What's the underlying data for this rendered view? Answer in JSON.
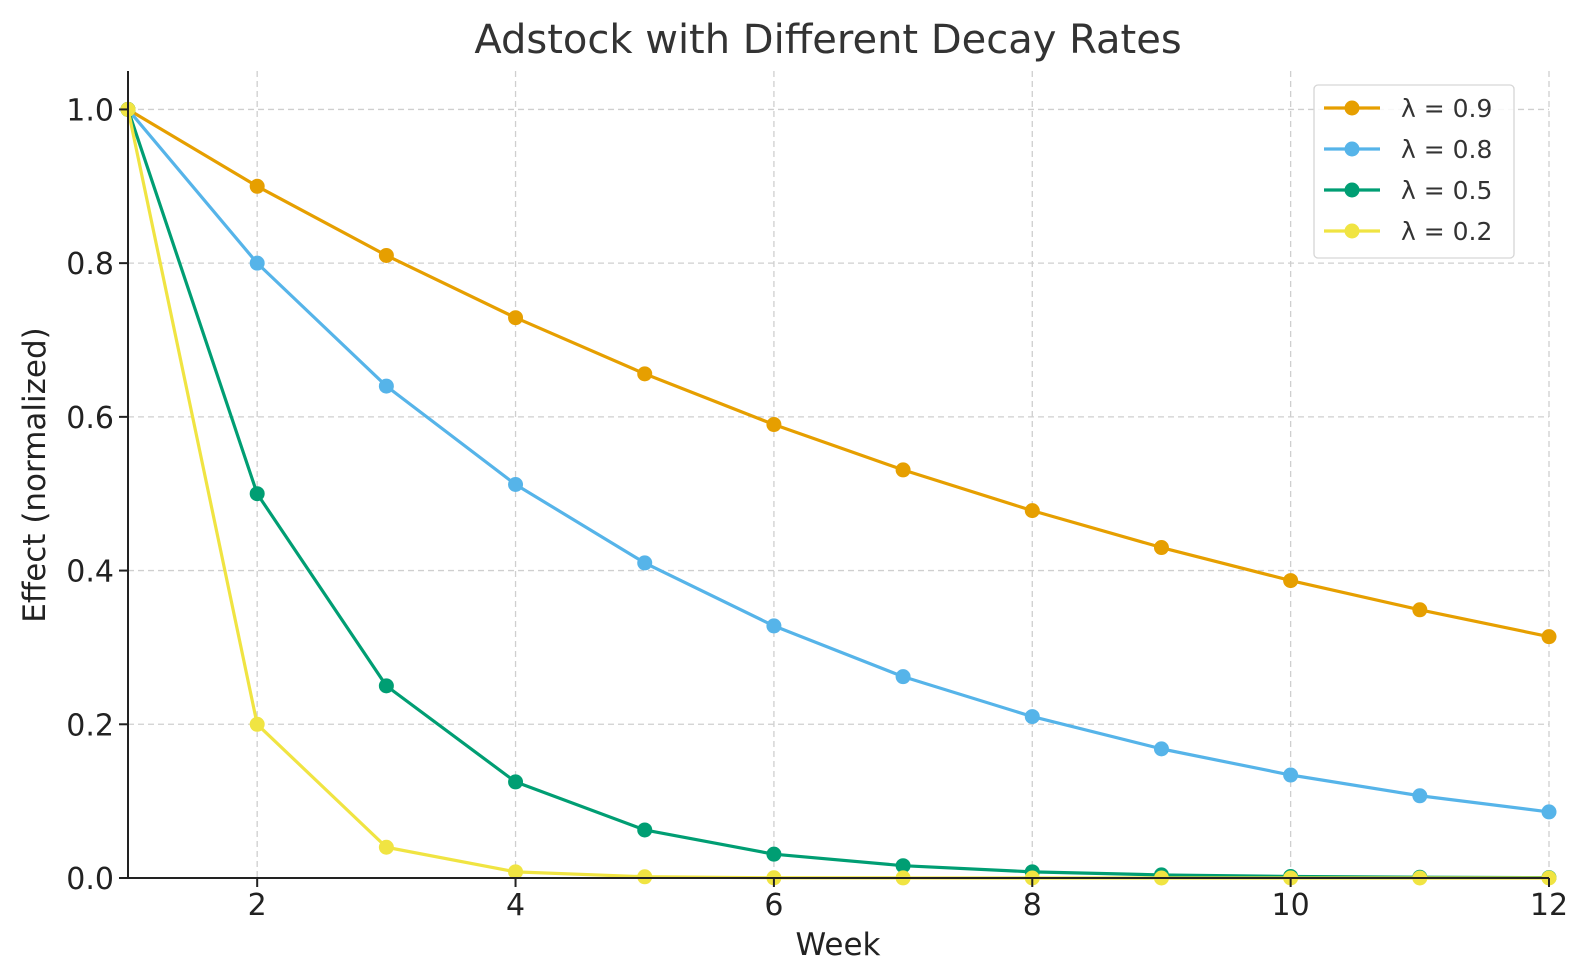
{
  "chart_data": {
    "type": "line",
    "title": "Adstock with Different Decay Rates",
    "xlabel": "Week",
    "ylabel": "Effect (normalized)",
    "xlim": [
      1,
      12
    ],
    "ylim": [
      0,
      1.05
    ],
    "x_ticks": [
      2,
      4,
      6,
      8,
      10,
      12
    ],
    "y_ticks": [
      0.0,
      0.2,
      0.4,
      0.6,
      0.8,
      1.0
    ],
    "grid": true,
    "legend_position": "top-right",
    "x": [
      1,
      2,
      3,
      4,
      5,
      6,
      7,
      8,
      9,
      10,
      11,
      12
    ],
    "series": [
      {
        "name": "λ = 0.9",
        "color": "#E69F00",
        "values": [
          1.0,
          0.9,
          0.81,
          0.729,
          0.656,
          0.59,
          0.531,
          0.478,
          0.43,
          0.387,
          0.349,
          0.314
        ]
      },
      {
        "name": "λ = 0.8",
        "color": "#56B4E9",
        "values": [
          1.0,
          0.8,
          0.64,
          0.512,
          0.41,
          0.328,
          0.262,
          0.21,
          0.168,
          0.134,
          0.107,
          0.086
        ]
      },
      {
        "name": "λ = 0.5",
        "color": "#009E73",
        "values": [
          1.0,
          0.5,
          0.25,
          0.125,
          0.0625,
          0.031,
          0.016,
          0.008,
          0.004,
          0.002,
          0.001,
          0.0005
        ]
      },
      {
        "name": "λ = 0.2",
        "color": "#F0E442",
        "values": [
          1.0,
          0.2,
          0.04,
          0.008,
          0.0016,
          0.0003,
          0.0001,
          0.0,
          0.0,
          0.0,
          0.0,
          0.0
        ]
      }
    ]
  }
}
